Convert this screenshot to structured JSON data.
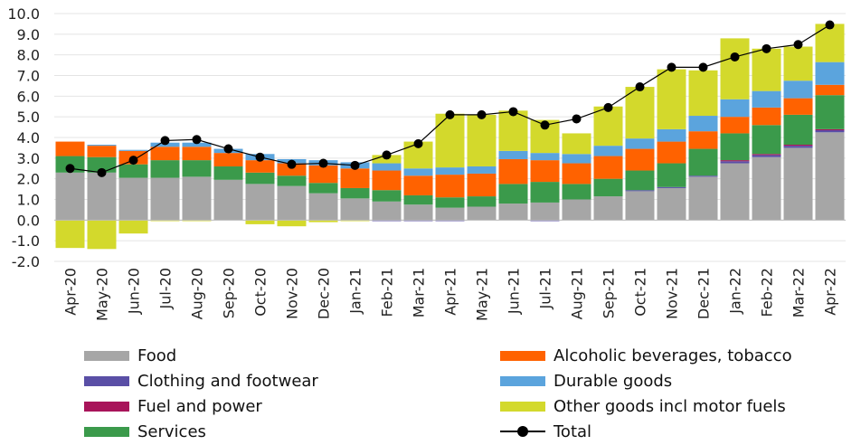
{
  "chart_data": {
    "type": "bar",
    "stacked": true,
    "categories": [
      "Apr-20",
      "May-20",
      "Jun-20",
      "Jul-20",
      "Aug-20",
      "Sep-20",
      "Oct-20",
      "Nov-20",
      "Dec-20",
      "Jan-21",
      "Feb-21",
      "Mar-21",
      "Apr-21",
      "May-21",
      "Jun-21",
      "Jul-21",
      "Aug-21",
      "Sep-21",
      "Oct-21",
      "Nov-21",
      "Dec-21",
      "Jan-22",
      "Feb-22",
      "Mar-22",
      "Apr-22"
    ],
    "ylim": [
      -2.0,
      10.0
    ],
    "yticks": [
      "-2.0",
      "-1.0",
      "0.0",
      "1.0",
      "2.0",
      "3.0",
      "4.0",
      "5.0",
      "6.0",
      "7.0",
      "8.0",
      "9.0",
      "10.0"
    ],
    "grid": "horizontal",
    "legend_position": "bottom",
    "series": [
      {
        "name": "Food",
        "color": "#a6a6a6",
        "values": [
          2.3,
          2.3,
          2.05,
          2.05,
          2.1,
          1.95,
          1.75,
          1.65,
          1.3,
          1.05,
          0.9,
          0.75,
          0.6,
          0.65,
          0.8,
          0.85,
          1.0,
          1.15,
          1.4,
          1.55,
          2.1,
          2.75,
          3.05,
          3.5,
          4.25
        ]
      },
      {
        "name": "Clothing and footwear",
        "color": "#5a4fa6",
        "values": [
          0.0,
          0.0,
          0.0,
          0.0,
          0.0,
          0.0,
          0.0,
          0.0,
          0.0,
          0.0,
          -0.05,
          -0.05,
          -0.05,
          0.0,
          0.0,
          -0.05,
          0.0,
          0.0,
          0.05,
          0.05,
          0.05,
          0.1,
          0.1,
          0.1,
          0.1
        ]
      },
      {
        "name": "Fuel and power",
        "color": "#a8145a",
        "values": [
          0.0,
          0.0,
          0.0,
          0.0,
          0.0,
          0.0,
          0.0,
          0.0,
          0.0,
          0.0,
          0.0,
          0.0,
          0.0,
          0.0,
          0.0,
          0.0,
          0.0,
          0.0,
          0.0,
          0.0,
          0.0,
          0.05,
          0.05,
          0.05,
          0.05
        ]
      },
      {
        "name": "Services",
        "color": "#3b9a4b",
        "values": [
          0.8,
          0.75,
          0.65,
          0.85,
          0.8,
          0.65,
          0.55,
          0.5,
          0.5,
          0.5,
          0.55,
          0.45,
          0.5,
          0.5,
          0.95,
          1.0,
          0.75,
          0.85,
          0.95,
          1.15,
          1.3,
          1.3,
          1.4,
          1.45,
          1.65
        ]
      },
      {
        "name": "Alcoholic beverages, tobacco",
        "color": "#ff6200",
        "values": [
          0.7,
          0.55,
          0.65,
          0.65,
          0.65,
          0.65,
          0.6,
          0.6,
          0.85,
          0.95,
          0.95,
          0.95,
          1.1,
          1.1,
          1.2,
          1.05,
          1.0,
          1.1,
          1.05,
          1.05,
          0.85,
          0.8,
          0.85,
          0.8,
          0.5
        ]
      },
      {
        "name": "Durable goods",
        "color": "#5ba4dd",
        "values": [
          0.0,
          0.05,
          0.05,
          0.2,
          0.2,
          0.2,
          0.3,
          0.2,
          0.25,
          0.3,
          0.35,
          0.35,
          0.35,
          0.35,
          0.4,
          0.35,
          0.45,
          0.5,
          0.5,
          0.6,
          0.75,
          0.85,
          0.8,
          0.85,
          1.1
        ]
      },
      {
        "name": "Other goods incl motor fuels",
        "color": "#d3d92c",
        "values": [
          -1.35,
          -1.4,
          -0.65,
          -0.05,
          -0.05,
          0.0,
          -0.2,
          -0.3,
          -0.1,
          -0.05,
          0.4,
          1.3,
          2.6,
          2.5,
          1.95,
          1.6,
          1.0,
          1.9,
          2.5,
          2.9,
          2.2,
          2.95,
          2.05,
          1.65,
          1.85
        ]
      },
      {
        "name": "Total",
        "color": "#000000",
        "type": "line",
        "values": [
          2.5,
          2.3,
          2.9,
          3.85,
          3.9,
          3.45,
          3.05,
          2.7,
          2.75,
          2.65,
          3.15,
          3.7,
          5.1,
          5.1,
          5.25,
          4.6,
          4.9,
          5.45,
          6.45,
          7.4,
          7.4,
          7.9,
          8.3,
          8.5,
          9.45
        ]
      }
    ],
    "legend": {
      "left": [
        "Food",
        "Clothing and footwear",
        "Fuel and power",
        "Services"
      ],
      "right": [
        "Alcoholic beverages, tobacco",
        "Durable goods",
        "Other goods incl motor fuels",
        "Total"
      ]
    }
  }
}
